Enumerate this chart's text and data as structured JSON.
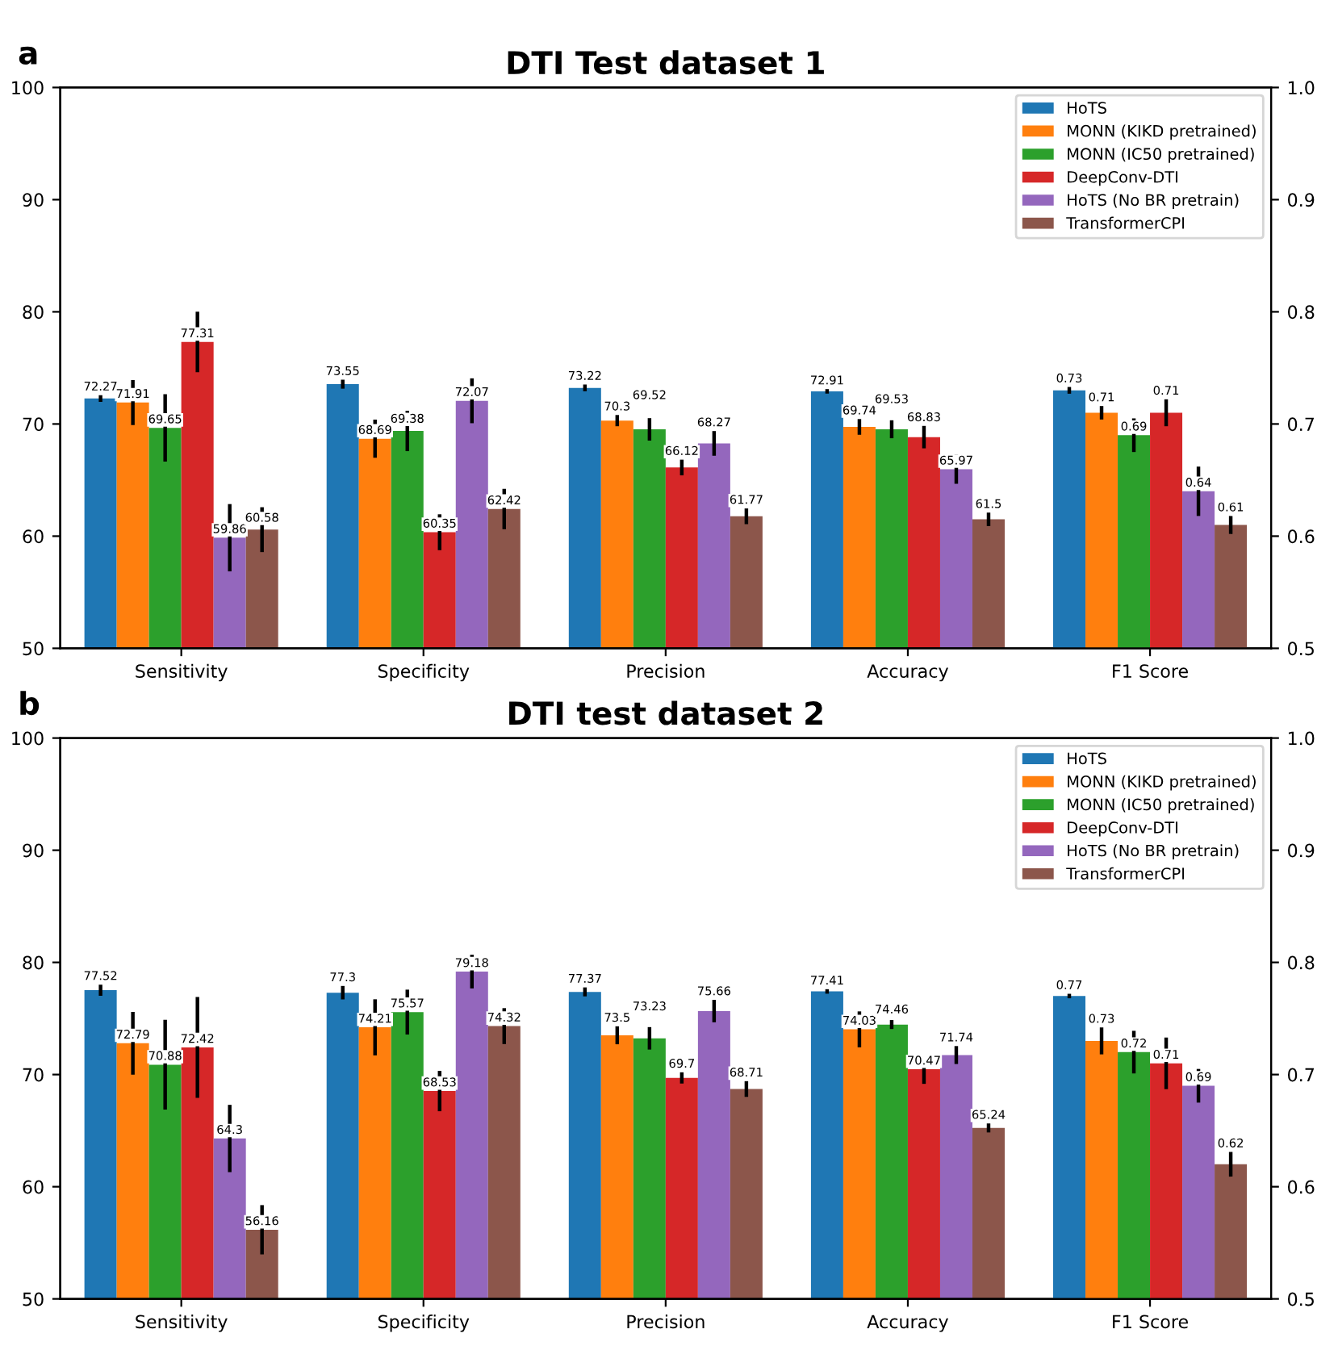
{
  "chart_data": [
    {
      "type": "bar",
      "title": "DTI Test dataset 1",
      "annotations": [
        "a"
      ],
      "categories": [
        "Sensitivity",
        "Specificity",
        "Precision",
        "Accuracy",
        "F1 Score"
      ],
      "ylim": [
        50,
        100
      ],
      "yticks": [
        50,
        60,
        70,
        80,
        90,
        100
      ],
      "y2lim": [
        0.5,
        1.0
      ],
      "y2ticks": [
        {
          "value": 0.5,
          "label": "0.5"
        },
        {
          "value": 0.6,
          "label": "0.6"
        },
        {
          "value": 0.7,
          "label": "0.7"
        },
        {
          "value": 0.8,
          "label": "0.8"
        },
        {
          "value": 0.9,
          "label": "0.9"
        },
        {
          "value": 1.0,
          "label": "1.0"
        }
      ],
      "legend": "top right",
      "data_labels": true,
      "series": [
        {
          "name": "HoTS",
          "color": "#1f77b4",
          "values": [
            72.27,
            73.55,
            73.22,
            72.91,
            null
          ],
          "errors": [
            0.3,
            0.4,
            0.3,
            0.2,
            null
          ]
        },
        {
          "name": "MONN (KIKD pretrained)",
          "color": "#ff7f0e",
          "values": [
            71.91,
            68.69,
            70.3,
            69.74,
            null
          ],
          "errors": [
            2.0,
            1.7,
            0.5,
            0.7,
            null
          ]
        },
        {
          "name": "MONN (IC50 pretrained)",
          "color": "#2ca02c",
          "values": [
            69.65,
            69.38,
            69.52,
            69.53,
            null
          ],
          "errors": [
            3.0,
            1.8,
            1.0,
            0.8,
            null
          ]
        },
        {
          "name": "DeepConv-DTI",
          "color": "#d62728",
          "values": [
            77.31,
            60.35,
            66.12,
            68.83,
            null
          ],
          "errors": [
            2.7,
            1.6,
            0.7,
            1.0,
            null
          ]
        },
        {
          "name": "HoTS (No BR pretrain)",
          "color": "#9467bd",
          "values": [
            59.86,
            72.07,
            68.27,
            65.97,
            null
          ],
          "errors": [
            3.0,
            2.0,
            1.1,
            1.3,
            null
          ]
        },
        {
          "name": "TransformerCPI",
          "color": "#8c564b",
          "values": [
            60.58,
            62.42,
            61.77,
            61.5,
            null
          ],
          "errors": [
            2.0,
            1.8,
            0.7,
            0.6,
            null
          ]
        },
        {
          "axis": "y2",
          "color": "#1f77b4",
          "values": [
            null,
            null,
            null,
            null,
            0.73
          ],
          "errors": [
            null,
            null,
            null,
            null,
            0.003
          ]
        },
        {
          "axis": "y2",
          "color": "#ff7f0e",
          "values": [
            null,
            null,
            null,
            null,
            0.71
          ],
          "errors": [
            null,
            null,
            null,
            null,
            0.006
          ]
        },
        {
          "axis": "y2",
          "color": "#2ca02c",
          "values": [
            null,
            null,
            null,
            null,
            0.69
          ],
          "errors": [
            null,
            null,
            null,
            null,
            0.015
          ]
        },
        {
          "axis": "y2",
          "color": "#d62728",
          "values": [
            null,
            null,
            null,
            null,
            0.71
          ],
          "errors": [
            null,
            null,
            null,
            null,
            0.012
          ]
        },
        {
          "axis": "y2",
          "color": "#9467bd",
          "values": [
            null,
            null,
            null,
            null,
            0.64
          ],
          "errors": [
            null,
            null,
            null,
            null,
            0.022
          ]
        },
        {
          "axis": "y2",
          "color": "#8c564b",
          "values": [
            null,
            null,
            null,
            null,
            0.61
          ],
          "errors": [
            null,
            null,
            null,
            null,
            0.008
          ]
        }
      ]
    },
    {
      "type": "bar",
      "title": "DTI test dataset 2",
      "annotations": [
        "b"
      ],
      "categories": [
        "Sensitivity",
        "Specificity",
        "Precision",
        "Accuracy",
        "F1 Score"
      ],
      "ylim": [
        50,
        100
      ],
      "yticks": [
        50,
        60,
        70,
        80,
        90,
        100
      ],
      "y2lim": [
        0.5,
        1.0
      ],
      "y2ticks": [
        {
          "value": 0.5,
          "label": "0.5"
        },
        {
          "value": 0.6,
          "label": "0.6"
        },
        {
          "value": 0.7,
          "label": "0.7"
        },
        {
          "value": 0.8,
          "label": "0.8"
        },
        {
          "value": 0.9,
          "label": "0.9"
        },
        {
          "value": 1.0,
          "label": "1.0"
        }
      ],
      "legend": "top right",
      "data_labels": true,
      "series": [
        {
          "name": "HoTS",
          "color": "#1f77b4",
          "values": [
            77.52,
            77.3,
            77.37,
            77.41,
            null
          ],
          "errors": [
            0.5,
            0.6,
            0.4,
            0.2,
            null
          ]
        },
        {
          "name": "MONN (KIKD pretrained)",
          "color": "#ff7f0e",
          "values": [
            72.79,
            74.21,
            73.5,
            74.03,
            null
          ],
          "errors": [
            2.8,
            2.5,
            0.8,
            1.6,
            null
          ]
        },
        {
          "name": "MONN (IC50 pretrained)",
          "color": "#2ca02c",
          "values": [
            70.88,
            75.57,
            73.23,
            74.46,
            null
          ],
          "errors": [
            4.0,
            2.0,
            1.0,
            0.4,
            null
          ]
        },
        {
          "name": "DeepConv-DTI",
          "color": "#d62728",
          "values": [
            72.42,
            68.53,
            69.7,
            70.47,
            null
          ],
          "errors": [
            4.5,
            1.8,
            0.5,
            1.3,
            null
          ]
        },
        {
          "name": "HoTS (No BR pretrain)",
          "color": "#9467bd",
          "values": [
            64.3,
            79.18,
            75.66,
            71.74,
            null
          ],
          "errors": [
            3.0,
            1.5,
            1.0,
            0.8,
            null
          ]
        },
        {
          "name": "TransformerCPI",
          "color": "#8c564b",
          "values": [
            56.16,
            74.32,
            68.71,
            65.24,
            null
          ],
          "errors": [
            2.2,
            1.6,
            0.7,
            0.4,
            null
          ]
        },
        {
          "axis": "y2",
          "color": "#1f77b4",
          "values": [
            null,
            null,
            null,
            null,
            0.77
          ],
          "errors": [
            null,
            null,
            null,
            null,
            0.002
          ]
        },
        {
          "axis": "y2",
          "color": "#ff7f0e",
          "values": [
            null,
            null,
            null,
            null,
            0.73
          ],
          "errors": [
            null,
            null,
            null,
            null,
            0.012
          ]
        },
        {
          "axis": "y2",
          "color": "#2ca02c",
          "values": [
            null,
            null,
            null,
            null,
            0.72
          ],
          "errors": [
            null,
            null,
            null,
            null,
            0.019
          ]
        },
        {
          "axis": "y2",
          "color": "#d62728",
          "values": [
            null,
            null,
            null,
            null,
            0.71
          ],
          "errors": [
            null,
            null,
            null,
            null,
            0.023
          ]
        },
        {
          "axis": "y2",
          "color": "#9467bd",
          "values": [
            null,
            null,
            null,
            null,
            0.69
          ],
          "errors": [
            null,
            null,
            null,
            null,
            0.015
          ]
        },
        {
          "axis": "y2",
          "color": "#8c564b",
          "values": [
            null,
            null,
            null,
            null,
            0.62
          ],
          "errors": [
            null,
            null,
            null,
            null,
            0.011
          ]
        }
      ]
    }
  ]
}
